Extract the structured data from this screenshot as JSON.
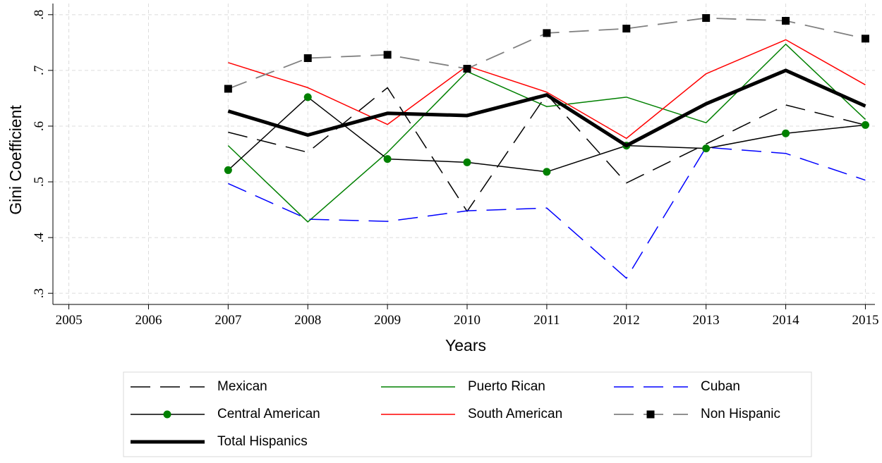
{
  "chart_data": {
    "type": "line",
    "x_label": "Years",
    "y_label": "Gini Coefficient",
    "x": [
      2007,
      2008,
      2009,
      2010,
      2011,
      2012,
      2013,
      2014,
      2015
    ],
    "xlim": [
      2004.8,
      2015.12
    ],
    "xticks": [
      2005,
      2006,
      2007,
      2008,
      2009,
      2010,
      2011,
      2012,
      2013,
      2014,
      2015
    ],
    "ylim": [
      0.28,
      0.82
    ],
    "yticks": [
      {
        "value": 0.3,
        "label": ".3"
      },
      {
        "value": 0.4,
        "label": ".4"
      },
      {
        "value": 0.5,
        "label": ".5"
      },
      {
        "value": 0.6,
        "label": ".6"
      },
      {
        "value": 0.7,
        "label": ".7"
      },
      {
        "value": 0.8,
        "label": ".8"
      }
    ],
    "grid": true,
    "legend_position": "bottom",
    "series": [
      {
        "name": "Mexican",
        "color": "#000000",
        "dash": "long",
        "width": 1.5,
        "marker": "none",
        "values": [
          0.589,
          0.553,
          0.669,
          0.447,
          0.657,
          0.498,
          0.568,
          0.638,
          0.602
        ]
      },
      {
        "name": "Puerto Rican",
        "color": "#008000",
        "dash": "solid",
        "width": 1.5,
        "marker": "none",
        "values": [
          0.565,
          0.428,
          0.553,
          0.698,
          0.635,
          0.652,
          0.606,
          0.747,
          0.612
        ]
      },
      {
        "name": "Cuban",
        "color": "#0000ff",
        "dash": "long",
        "width": 1.5,
        "marker": "none",
        "values": [
          0.497,
          0.433,
          0.429,
          0.448,
          0.453,
          0.327,
          0.562,
          0.551,
          0.503
        ]
      },
      {
        "name": "Central American",
        "color": "#000000",
        "dash": "solid",
        "width": 1.5,
        "marker": "circle",
        "marker_color": "#008000",
        "values": [
          0.521,
          0.652,
          0.541,
          0.535,
          0.518,
          0.565,
          0.56,
          0.587,
          0.602
        ]
      },
      {
        "name": "South American",
        "color": "#ff0000",
        "dash": "solid",
        "width": 1.5,
        "marker": "none",
        "values": [
          0.714,
          0.669,
          0.603,
          0.708,
          0.661,
          0.578,
          0.694,
          0.755,
          0.674
        ]
      },
      {
        "name": "Non Hispanic",
        "color": "#808080",
        "dash": "long",
        "width": 1.8,
        "marker": "square",
        "marker_color": "#000000",
        "values": [
          0.667,
          0.722,
          0.728,
          0.703,
          0.767,
          0.775,
          0.794,
          0.789,
          0.757
        ]
      },
      {
        "name": "Total Hispanics",
        "color": "#000000",
        "dash": "solid",
        "width": 5,
        "marker": "none",
        "values": [
          0.627,
          0.584,
          0.623,
          0.619,
          0.656,
          0.565,
          0.64,
          0.7,
          0.636
        ]
      }
    ]
  }
}
